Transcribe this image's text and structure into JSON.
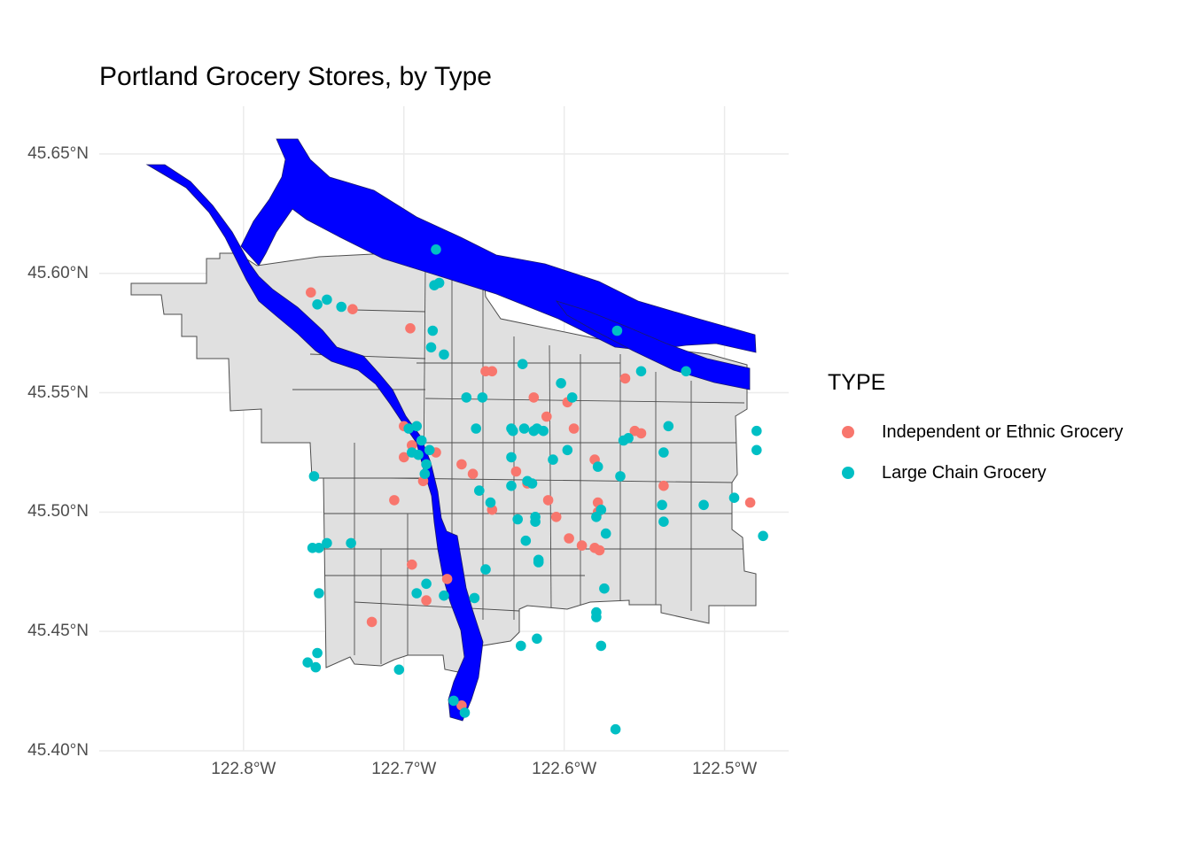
{
  "title": "Portland Grocery Stores, by Type",
  "colors": {
    "independent": "#F8766D",
    "chain": "#00BFC4",
    "river": "#0000FF",
    "land": "#E0E0E0",
    "outline": "#4D4D4D",
    "grid": "#EBEBEB"
  },
  "axes": {
    "x_ticks": [
      "122.8°W",
      "122.7°W",
      "122.6°W",
      "122.5°W"
    ],
    "y_ticks": [
      "45.65°N",
      "45.60°N",
      "45.55°N",
      "45.50°N",
      "45.45°N",
      "45.40°N"
    ]
  },
  "legend": {
    "title": "TYPE",
    "items": [
      {
        "label": "Independent or Ethnic Grocery",
        "color": "#F8766D"
      },
      {
        "label": "Large Chain Grocery",
        "color": "#00BFC4"
      }
    ]
  },
  "chart_data": {
    "type": "scatter",
    "title": "Portland Grocery Stores, by Type",
    "xlim": [
      -122.89,
      -122.46
    ],
    "ylim": [
      45.4,
      45.67
    ],
    "series": [
      {
        "name": "Independent or Ethnic Grocery",
        "color": "#F8766D",
        "points": [
          [
            -122.758,
            45.592
          ],
          [
            -122.732,
            45.585
          ],
          [
            -122.696,
            45.577
          ],
          [
            -122.649,
            45.559
          ],
          [
            -122.645,
            45.559
          ],
          [
            -122.562,
            45.556
          ],
          [
            -122.619,
            45.548
          ],
          [
            -122.598,
            45.546
          ],
          [
            -122.611,
            45.54
          ],
          [
            -122.594,
            45.535
          ],
          [
            -122.556,
            45.534
          ],
          [
            -122.552,
            45.533
          ],
          [
            -122.7,
            45.536
          ],
          [
            -122.695,
            45.528
          ],
          [
            -122.68,
            45.525
          ],
          [
            -122.7,
            45.523
          ],
          [
            -122.664,
            45.52
          ],
          [
            -122.657,
            45.516
          ],
          [
            -122.63,
            45.517
          ],
          [
            -122.623,
            45.512
          ],
          [
            -122.581,
            45.522
          ],
          [
            -122.688,
            45.513
          ],
          [
            -122.706,
            45.505
          ],
          [
            -122.645,
            45.501
          ],
          [
            -122.61,
            45.505
          ],
          [
            -122.605,
            45.498
          ],
          [
            -122.579,
            45.504
          ],
          [
            -122.579,
            45.5
          ],
          [
            -122.597,
            45.489
          ],
          [
            -122.589,
            45.486
          ],
          [
            -122.581,
            45.485
          ],
          [
            -122.578,
            45.484
          ],
          [
            -122.538,
            45.511
          ],
          [
            -122.484,
            45.504
          ],
          [
            -122.695,
            45.478
          ],
          [
            -122.673,
            45.472
          ],
          [
            -122.686,
            45.463
          ],
          [
            -122.72,
            45.454
          ],
          [
            -122.664,
            45.419
          ]
        ]
      },
      {
        "name": "Large Chain Grocery",
        "color": "#00BFC4",
        "points": [
          [
            -122.68,
            45.61
          ],
          [
            -122.681,
            45.595
          ],
          [
            -122.678,
            45.596
          ],
          [
            -122.754,
            45.587
          ],
          [
            -122.748,
            45.589
          ],
          [
            -122.739,
            45.586
          ],
          [
            -122.682,
            45.576
          ],
          [
            -122.683,
            45.569
          ],
          [
            -122.675,
            45.566
          ],
          [
            -122.567,
            45.576
          ],
          [
            -122.626,
            45.562
          ],
          [
            -122.602,
            45.554
          ],
          [
            -122.552,
            45.559
          ],
          [
            -122.524,
            45.559
          ],
          [
            -122.661,
            45.548
          ],
          [
            -122.651,
            45.548
          ],
          [
            -122.595,
            45.548
          ],
          [
            -122.655,
            45.535
          ],
          [
            -122.633,
            45.535
          ],
          [
            -122.625,
            45.535
          ],
          [
            -122.632,
            45.534
          ],
          [
            -122.617,
            45.535
          ],
          [
            -122.613,
            45.534
          ],
          [
            -122.619,
            45.534
          ],
          [
            -122.697,
            45.535
          ],
          [
            -122.692,
            45.536
          ],
          [
            -122.689,
            45.53
          ],
          [
            -122.695,
            45.525
          ],
          [
            -122.691,
            45.524
          ],
          [
            -122.686,
            45.52
          ],
          [
            -122.684,
            45.526
          ],
          [
            -122.598,
            45.526
          ],
          [
            -122.607,
            45.522
          ],
          [
            -122.633,
            45.523
          ],
          [
            -122.56,
            45.531
          ],
          [
            -122.563,
            45.53
          ],
          [
            -122.538,
            45.525
          ],
          [
            -122.535,
            45.536
          ],
          [
            -122.48,
            45.534
          ],
          [
            -122.48,
            45.526
          ],
          [
            -122.756,
            45.515
          ],
          [
            -122.687,
            45.516
          ],
          [
            -122.579,
            45.519
          ],
          [
            -122.565,
            45.515
          ],
          [
            -122.653,
            45.509
          ],
          [
            -122.633,
            45.511
          ],
          [
            -122.646,
            45.504
          ],
          [
            -122.623,
            45.513
          ],
          [
            -122.62,
            45.512
          ],
          [
            -122.629,
            45.497
          ],
          [
            -122.618,
            45.496
          ],
          [
            -122.618,
            45.498
          ],
          [
            -122.539,
            45.503
          ],
          [
            -122.538,
            45.496
          ],
          [
            -122.513,
            45.503
          ],
          [
            -122.494,
            45.506
          ],
          [
            -122.577,
            45.501
          ],
          [
            -122.58,
            45.498
          ],
          [
            -122.574,
            45.491
          ],
          [
            -122.624,
            45.488
          ],
          [
            -122.616,
            45.48
          ],
          [
            -122.616,
            45.479
          ],
          [
            -122.757,
            45.485
          ],
          [
            -122.753,
            45.485
          ],
          [
            -122.748,
            45.487
          ],
          [
            -122.733,
            45.487
          ],
          [
            -122.686,
            45.47
          ],
          [
            -122.753,
            45.466
          ],
          [
            -122.692,
            45.466
          ],
          [
            -122.649,
            45.476
          ],
          [
            -122.656,
            45.464
          ],
          [
            -122.675,
            45.465
          ],
          [
            -122.575,
            45.468
          ],
          [
            -122.58,
            45.458
          ],
          [
            -122.58,
            45.456
          ],
          [
            -122.577,
            45.444
          ],
          [
            -122.627,
            45.444
          ],
          [
            -122.617,
            45.447
          ],
          [
            -122.76,
            45.437
          ],
          [
            -122.754,
            45.441
          ],
          [
            -122.755,
            45.435
          ],
          [
            -122.703,
            45.434
          ],
          [
            -122.669,
            45.421
          ],
          [
            -122.662,
            45.416
          ],
          [
            -122.568,
            45.409
          ],
          [
            -122.476,
            45.49
          ]
        ]
      }
    ]
  }
}
